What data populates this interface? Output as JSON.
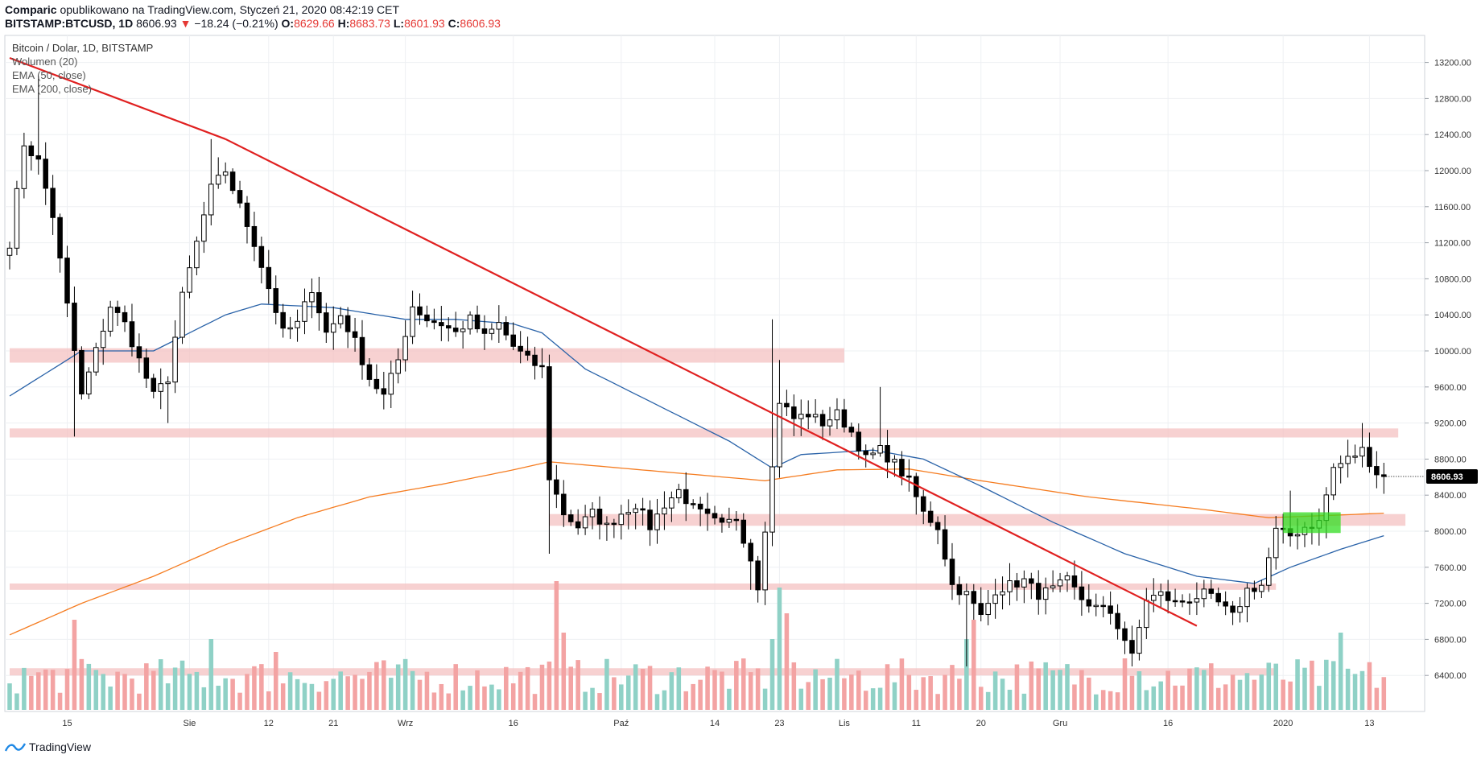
{
  "header": {
    "author": "Comparic",
    "published": "opublikowano na TradingView.com, Styczeń 21, 2020 08:42:19 CET",
    "symbol": "BITSTAMP:BTCUSD, 1D",
    "last": "8606.93",
    "change_arrow": "▼",
    "change": "−18.24 (−0.21%)",
    "o_label": "O:",
    "o_val": "8629.66",
    "h_label": "H:",
    "h_val": "8683.73",
    "l_label": "L:",
    "l_val": "8601.93",
    "c_label": "C:",
    "c_val": "8606.93"
  },
  "legend": [
    "Bitcoin / Dolar, 1D, BITSTAMP",
    "Wolumen (20)",
    "EMA (50, close)",
    "EMA (200, close)"
  ],
  "footer": {
    "brand": "TradingView",
    "icon": "tradingview-logo-icon"
  },
  "colors": {
    "up_candle": "#ffffff",
    "down_candle": "#000000",
    "ema50": "#2962a8",
    "ema200": "#f57c20",
    "trendline": "#e02020",
    "zone": "#f4c2c2",
    "green_box": "#33dd22",
    "vol_up": "#8fd1c6",
    "vol_down": "#f3a3a3",
    "price_label_bg": "#000000"
  },
  "chart_data": {
    "type": "candlestick",
    "title": "Bitcoin / Dolar, 1D, BITSTAMP",
    "ylim": [
      6000,
      13500
    ],
    "y_ticks": [
      6400,
      6800,
      7200,
      7600,
      8000,
      8400,
      8800,
      9200,
      9600,
      10000,
      10400,
      10800,
      11200,
      11600,
      12000,
      12400,
      12800,
      13200
    ],
    "y_tick_labels": [
      "6400.00",
      "6800.00",
      "7200.00",
      "7600.00",
      "8000.00",
      "8400.00",
      "8800.00",
      "9200.00",
      "9600.00",
      "10000.00",
      "10400.00",
      "10800.00",
      "11200.00",
      "11600.00",
      "12000.00",
      "12400.00",
      "12800.00",
      "13200.00"
    ],
    "x_tick_labels": [
      {
        "label": "15",
        "day": 8
      },
      {
        "label": "Sie",
        "day": 25
      },
      {
        "label": "12",
        "day": 36
      },
      {
        "label": "21",
        "day": 45
      },
      {
        "label": "Wrz",
        "day": 55
      },
      {
        "label": "16",
        "day": 70
      },
      {
        "label": "Paź",
        "day": 85
      },
      {
        "label": "14",
        "day": 98
      },
      {
        "label": "23",
        "day": 107
      },
      {
        "label": "Lis",
        "day": 116
      },
      {
        "label": "11",
        "day": 126
      },
      {
        "label": "20",
        "day": 135
      },
      {
        "label": "Gru",
        "day": 146
      },
      {
        "label": "16",
        "day": 161
      },
      {
        "label": "2020",
        "day": 177
      },
      {
        "label": "13",
        "day": 189
      }
    ],
    "grid": true,
    "last_price": 8606.93,
    "last_price_label": "8606.93",
    "close_anchors": [
      [
        0,
        11200
      ],
      [
        2,
        12300
      ],
      [
        4,
        12100
      ],
      [
        6,
        11500
      ],
      [
        8,
        10500
      ],
      [
        10,
        9500
      ],
      [
        12,
        10000
      ],
      [
        14,
        10500
      ],
      [
        16,
        10300
      ],
      [
        18,
        9900
      ],
      [
        20,
        9500
      ],
      [
        22,
        9700
      ],
      [
        24,
        10600
      ],
      [
        26,
        11200
      ],
      [
        28,
        11800
      ],
      [
        30,
        12000
      ],
      [
        32,
        11600
      ],
      [
        34,
        11200
      ],
      [
        36,
        10700
      ],
      [
        38,
        10200
      ],
      [
        40,
        10300
      ],
      [
        42,
        10700
      ],
      [
        44,
        10200
      ],
      [
        46,
        10400
      ],
      [
        48,
        10100
      ],
      [
        50,
        9700
      ],
      [
        52,
        9500
      ],
      [
        54,
        9900
      ],
      [
        56,
        10500
      ],
      [
        58,
        10350
      ],
      [
        60,
        10300
      ],
      [
        62,
        10200
      ],
      [
        64,
        10350
      ],
      [
        66,
        10150
      ],
      [
        68,
        10300
      ],
      [
        70,
        10050
      ],
      [
        72,
        9900
      ],
      [
        74,
        9800
      ],
      [
        75,
        8600
      ],
      [
        77,
        8200
      ],
      [
        79,
        8050
      ],
      [
        81,
        8200
      ],
      [
        83,
        8050
      ],
      [
        85,
        8200
      ],
      [
        87,
        8300
      ],
      [
        89,
        8050
      ],
      [
        91,
        8300
      ],
      [
        93,
        8450
      ],
      [
        95,
        8250
      ],
      [
        97,
        8150
      ],
      [
        99,
        8050
      ],
      [
        101,
        8150
      ],
      [
        103,
        7700
      ],
      [
        104,
        7400
      ],
      [
        106,
        8700
      ],
      [
        107,
        9450
      ],
      [
        109,
        9250
      ],
      [
        111,
        9300
      ],
      [
        113,
        9200
      ],
      [
        115,
        9300
      ],
      [
        117,
        9100
      ],
      [
        119,
        8800
      ],
      [
        121,
        8900
      ],
      [
        123,
        8750
      ],
      [
        125,
        8550
      ],
      [
        127,
        8200
      ],
      [
        129,
        8050
      ],
      [
        131,
        7400
      ],
      [
        133,
        7300
      ],
      [
        135,
        7050
      ],
      [
        137,
        7350
      ],
      [
        139,
        7400
      ],
      [
        141,
        7450
      ],
      [
        143,
        7300
      ],
      [
        145,
        7350
      ],
      [
        147,
        7450
      ],
      [
        149,
        7250
      ],
      [
        151,
        7150
      ],
      [
        153,
        7100
      ],
      [
        155,
        6800
      ],
      [
        156,
        6600
      ],
      [
        158,
        7250
      ],
      [
        160,
        7300
      ],
      [
        162,
        7200
      ],
      [
        164,
        7250
      ],
      [
        166,
        7300
      ],
      [
        168,
        7200
      ],
      [
        170,
        7050
      ],
      [
        172,
        7350
      ],
      [
        174,
        7400
      ],
      [
        175,
        7700
      ],
      [
        176,
        8000
      ],
      [
        178,
        7950
      ],
      [
        180,
        8050
      ],
      [
        182,
        8100
      ],
      [
        184,
        8700
      ],
      [
        186,
        8800
      ],
      [
        188,
        8900
      ],
      [
        190,
        8650
      ],
      [
        191,
        8607
      ]
    ],
    "ema50_points": [
      [
        0,
        9500
      ],
      [
        10,
        10000
      ],
      [
        20,
        10000
      ],
      [
        30,
        10400
      ],
      [
        35,
        10520
      ],
      [
        45,
        10480
      ],
      [
        55,
        10350
      ],
      [
        62,
        10350
      ],
      [
        70,
        10300
      ],
      [
        74,
        10200
      ],
      [
        80,
        9800
      ],
      [
        90,
        9400
      ],
      [
        100,
        9000
      ],
      [
        106,
        8700
      ],
      [
        110,
        8850
      ],
      [
        120,
        8900
      ],
      [
        127,
        8800
      ],
      [
        135,
        8500
      ],
      [
        145,
        8100
      ],
      [
        155,
        7750
      ],
      [
        165,
        7500
      ],
      [
        173,
        7420
      ],
      [
        178,
        7600
      ],
      [
        185,
        7800
      ],
      [
        191,
        7950
      ]
    ],
    "ema200_points": [
      [
        0,
        6850
      ],
      [
        10,
        7200
      ],
      [
        20,
        7500
      ],
      [
        30,
        7850
      ],
      [
        40,
        8150
      ],
      [
        50,
        8380
      ],
      [
        60,
        8520
      ],
      [
        70,
        8680
      ],
      [
        75,
        8770
      ],
      [
        85,
        8700
      ],
      [
        95,
        8630
      ],
      [
        105,
        8560
      ],
      [
        115,
        8680
      ],
      [
        125,
        8690
      ],
      [
        135,
        8560
      ],
      [
        150,
        8380
      ],
      [
        165,
        8250
      ],
      [
        175,
        8150
      ],
      [
        185,
        8180
      ],
      [
        191,
        8200
      ]
    ],
    "trendlines": [
      {
        "from": [
          0,
          13250
        ],
        "to": [
          30,
          12350
        ]
      },
      {
        "from": [
          30,
          12350
        ],
        "to": [
          165,
          6950
        ]
      }
    ],
    "zones": [
      {
        "y": [
          9870,
          10030
        ],
        "from_day": 0,
        "to_day": 116
      },
      {
        "y": [
          9040,
          9140
        ],
        "from_day": 0,
        "to_day": 193
      },
      {
        "y": [
          8060,
          8190
        ],
        "from_day": 75,
        "to_day": 194
      },
      {
        "y": [
          7350,
          7420
        ],
        "from_day": 0,
        "to_day": 176
      },
      {
        "y": [
          6400,
          6480
        ],
        "from_day": 0,
        "to_day": 176
      }
    ],
    "highlight_box": {
      "y": [
        7980,
        8210
      ],
      "from_day": 177,
      "to_day": 185
    },
    "volume": {
      "panel_label": "Wolumen (20)",
      "spikes": [
        {
          "day": 9,
          "rel": 0.7
        },
        {
          "day": 28,
          "rel": 0.55
        },
        {
          "day": 37,
          "rel": 0.45
        },
        {
          "day": 76,
          "rel": 1.0
        },
        {
          "day": 77,
          "rel": 0.6
        },
        {
          "day": 106,
          "rel": 0.55
        },
        {
          "day": 107,
          "rel": 0.95
        },
        {
          "day": 108,
          "rel": 0.75
        },
        {
          "day": 133,
          "rel": 0.55
        },
        {
          "day": 134,
          "rel": 0.7
        },
        {
          "day": 155,
          "rel": 0.4
        },
        {
          "day": 157,
          "rel": 0.3
        },
        {
          "day": 185,
          "rel": 0.6
        }
      ]
    }
  }
}
